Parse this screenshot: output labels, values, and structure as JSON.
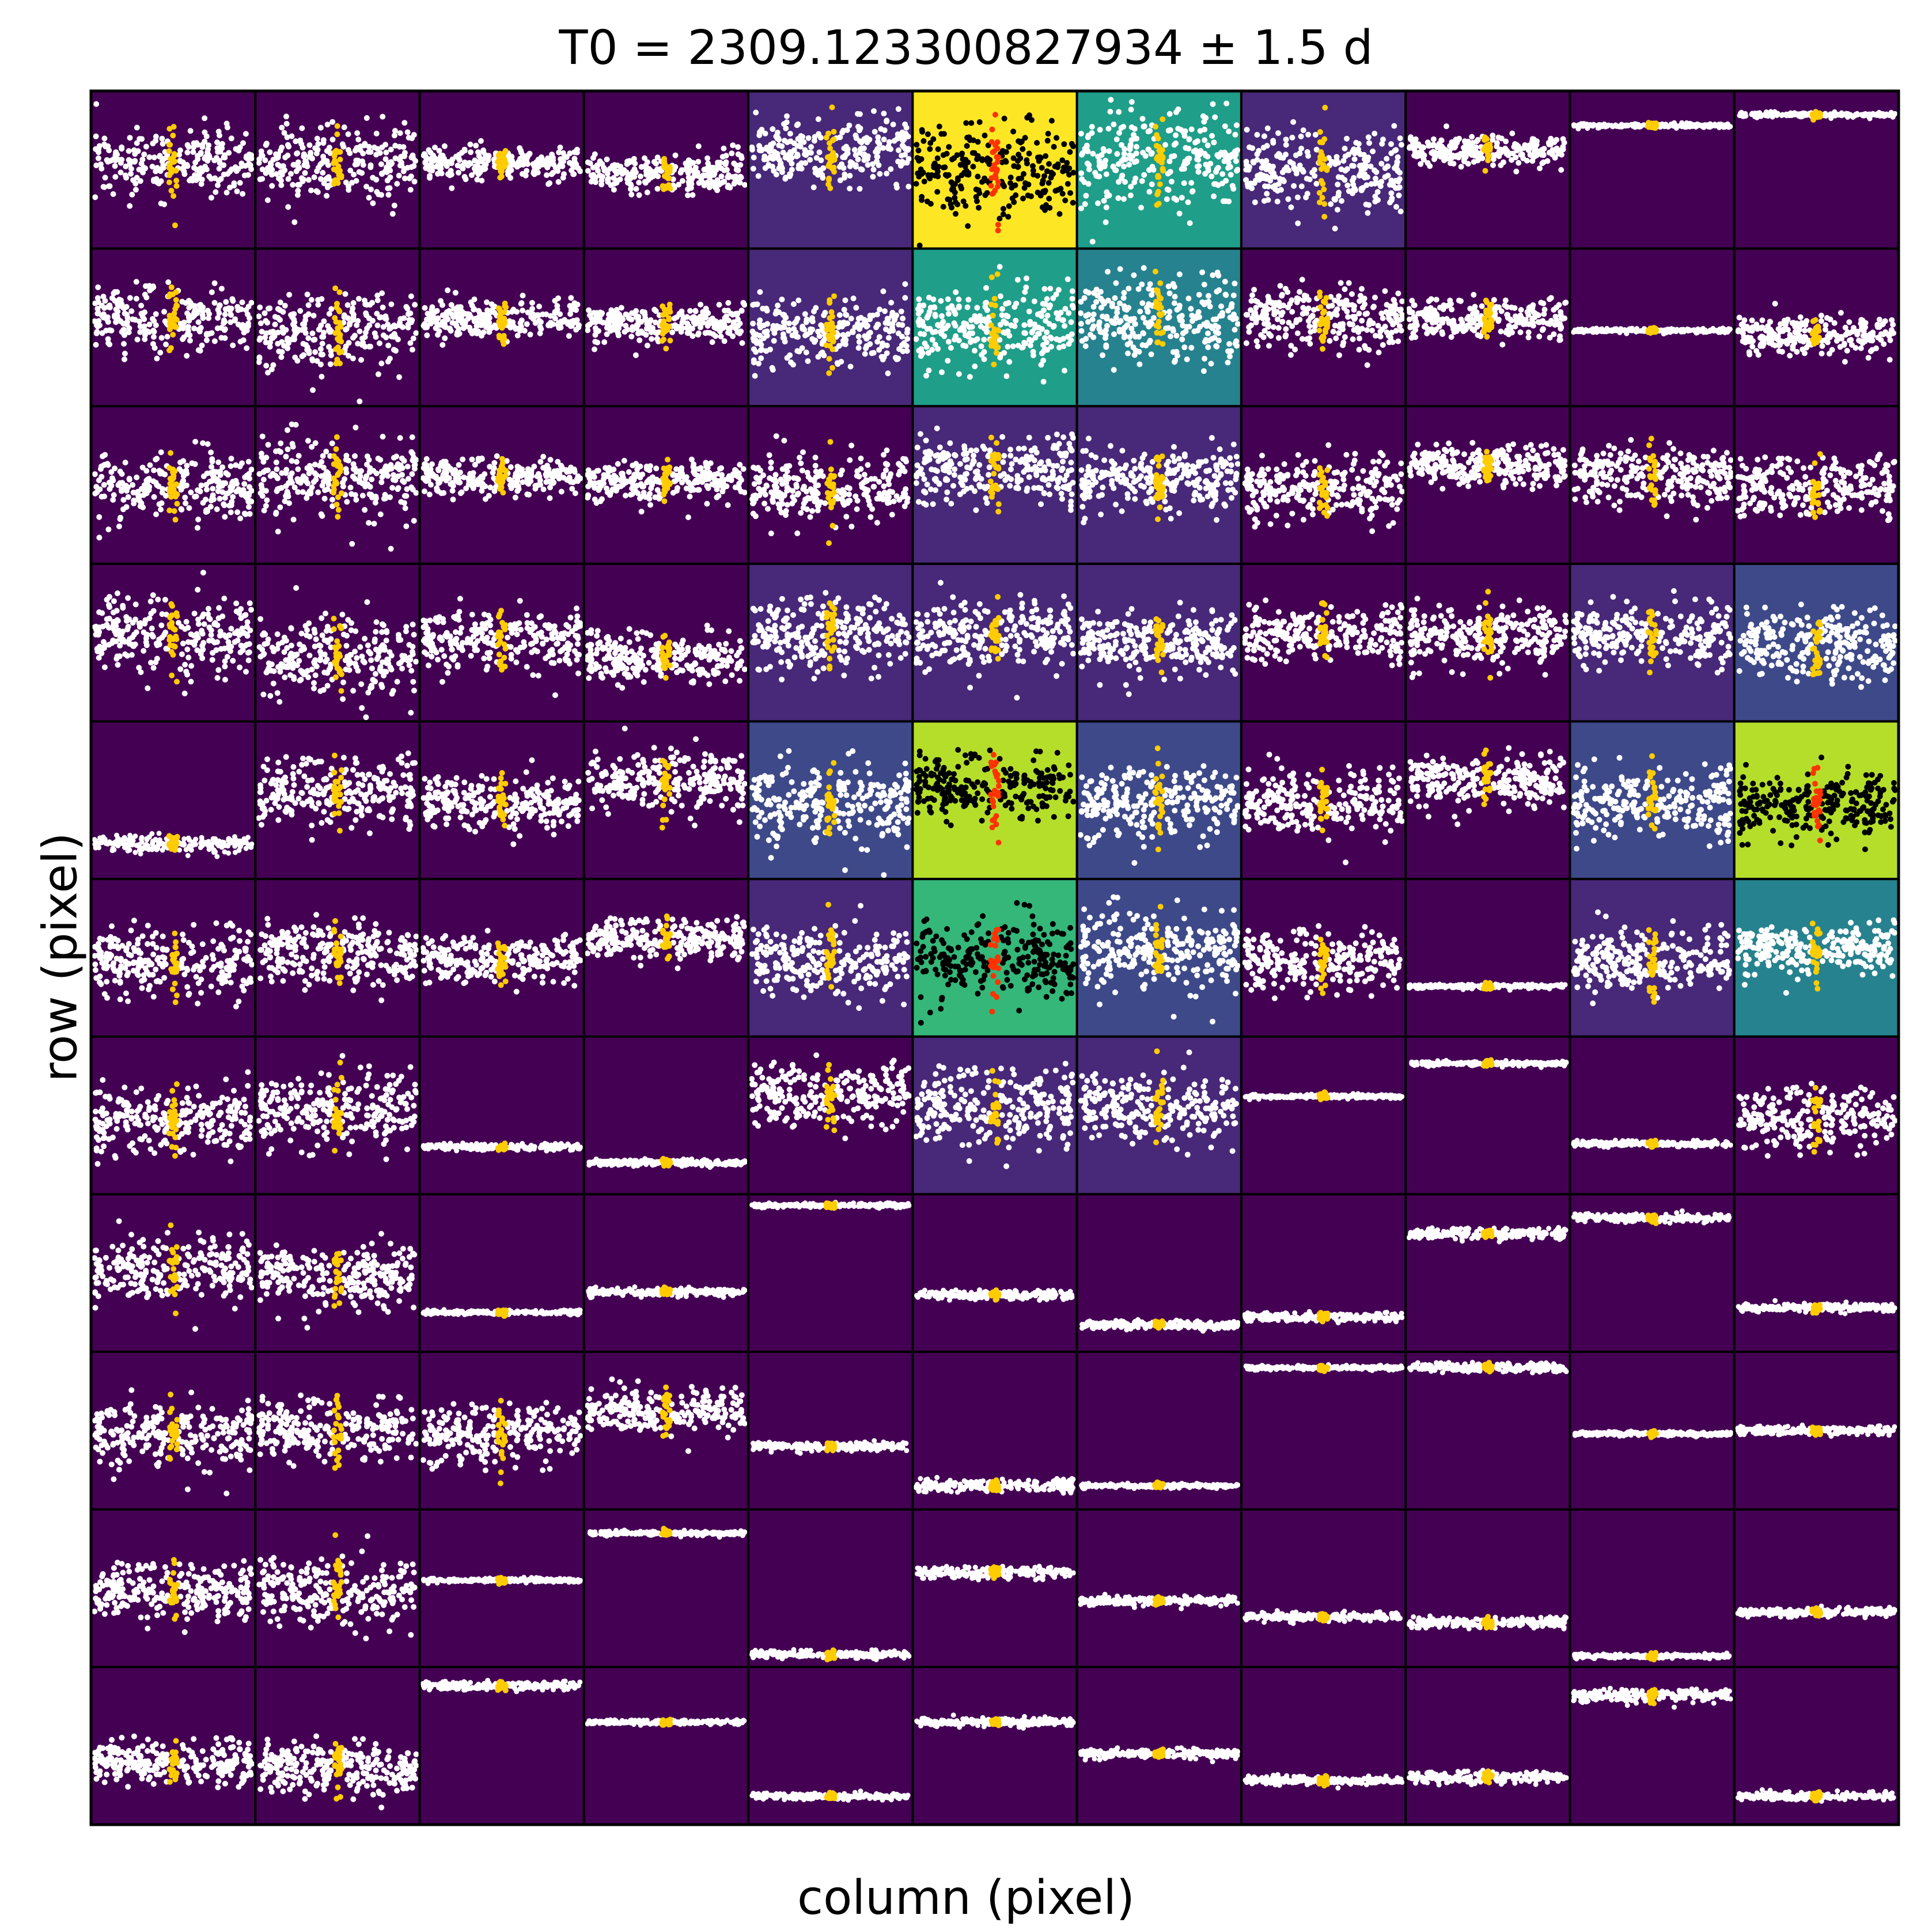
{
  "chart_data": {
    "type": "scatter",
    "title": "T0 = 2309.123300827934 ± 1.5 d",
    "xlabel": "column (pixel)",
    "ylabel": "row (pixel)",
    "grid_rows": 11,
    "grid_cols": 11,
    "colormap": "viridis",
    "colors": {
      "viridis": [
        "#440154",
        "#482878",
        "#3e4989",
        "#31688e",
        "#26828e",
        "#1f9e89",
        "#35b779",
        "#6ece58",
        "#b5de2b",
        "#fde725"
      ],
      "light_points": "#ffffff",
      "dark_points": "#000000",
      "in_transit_light": "#ffcc00",
      "in_transit_dark": "#ff3300",
      "frame": "#000000"
    },
    "pixel_intensity": [
      [
        0.0,
        0.0,
        0.0,
        0.02,
        0.15,
        1.0,
        0.6,
        0.15,
        0.0,
        0.0,
        0.0
      ],
      [
        0.0,
        0.0,
        0.0,
        0.02,
        0.1,
        0.5,
        0.4,
        0.05,
        0.02,
        0.0,
        0.02
      ],
      [
        0.0,
        0.0,
        0.0,
        0.02,
        0.05,
        0.1,
        0.1,
        0.05,
        0.02,
        0.02,
        0.05
      ],
      [
        0.0,
        0.0,
        0.0,
        0.0,
        0.1,
        0.15,
        0.1,
        0.05,
        0.05,
        0.1,
        0.2
      ],
      [
        0.0,
        0.0,
        0.0,
        0.05,
        0.25,
        0.88,
        0.25,
        0.05,
        0.05,
        0.2,
        0.88
      ],
      [
        0.0,
        0.0,
        0.0,
        0.02,
        0.15,
        0.7,
        0.2,
        0.05,
        0.0,
        0.1,
        0.45
      ],
      [
        0.0,
        0.0,
        0.0,
        0.0,
        0.05,
        0.1,
        0.1,
        0.02,
        0.0,
        0.0,
        0.02
      ],
      [
        0.0,
        0.0,
        0.0,
        0.0,
        0.0,
        0.0,
        0.0,
        0.0,
        0.0,
        0.0,
        0.0
      ],
      [
        0.0,
        0.0,
        0.0,
        0.0,
        0.0,
        0.0,
        0.0,
        0.0,
        0.0,
        0.0,
        0.0
      ],
      [
        0.0,
        0.0,
        0.0,
        0.0,
        0.0,
        0.0,
        0.0,
        0.0,
        0.0,
        0.0,
        0.0
      ],
      [
        0.0,
        0.0,
        0.0,
        0.0,
        0.0,
        0.0,
        0.0,
        0.0,
        0.0,
        0.0,
        0.0
      ]
    ],
    "light_curve_level": [
      [
        0.45,
        0.45,
        0.45,
        0.52,
        0.38,
        0.5,
        0.45,
        0.5,
        0.38,
        0.22,
        0.15
      ],
      [
        0.45,
        0.52,
        0.45,
        0.48,
        0.52,
        0.48,
        0.45,
        0.45,
        0.45,
        0.52,
        0.55
      ],
      [
        0.52,
        0.45,
        0.45,
        0.48,
        0.52,
        0.42,
        0.45,
        0.52,
        0.38,
        0.45,
        0.52
      ],
      [
        0.45,
        0.6,
        0.48,
        0.6,
        0.45,
        0.45,
        0.5,
        0.45,
        0.45,
        0.45,
        0.52
      ],
      [
        0.78,
        0.45,
        0.52,
        0.38,
        0.52,
        0.42,
        0.52,
        0.52,
        0.38,
        0.52,
        0.52
      ],
      [
        0.52,
        0.48,
        0.52,
        0.38,
        0.52,
        0.52,
        0.45,
        0.52,
        0.68,
        0.52,
        0.45
      ],
      [
        0.52,
        0.45,
        0.7,
        0.8,
        0.38,
        0.45,
        0.45,
        0.38,
        0.17,
        0.68,
        0.52
      ],
      [
        0.48,
        0.52,
        0.75,
        0.62,
        0.07,
        0.64,
        0.83,
        0.78,
        0.25,
        0.15,
        0.72
      ],
      [
        0.52,
        0.5,
        0.52,
        0.38,
        0.6,
        0.85,
        0.85,
        0.1,
        0.1,
        0.52,
        0.5
      ],
      [
        0.52,
        0.52,
        0.45,
        0.15,
        0.92,
        0.4,
        0.58,
        0.68,
        0.72,
        0.93,
        0.65
      ],
      [
        0.6,
        0.65,
        0.12,
        0.35,
        0.82,
        0.35,
        0.55,
        0.72,
        0.7,
        0.18,
        0.82
      ]
    ],
    "noise_level": [
      [
        0.32,
        0.36,
        0.16,
        0.18,
        0.32,
        0.45,
        0.45,
        0.36,
        0.14,
        0.02,
        0.02
      ],
      [
        0.32,
        0.36,
        0.18,
        0.18,
        0.32,
        0.4,
        0.4,
        0.3,
        0.18,
        0.02,
        0.18
      ],
      [
        0.32,
        0.36,
        0.18,
        0.18,
        0.32,
        0.32,
        0.32,
        0.3,
        0.18,
        0.28,
        0.28
      ],
      [
        0.36,
        0.4,
        0.28,
        0.25,
        0.36,
        0.32,
        0.3,
        0.25,
        0.3,
        0.3,
        0.32
      ],
      [
        0.08,
        0.32,
        0.25,
        0.3,
        0.36,
        0.32,
        0.36,
        0.3,
        0.25,
        0.32,
        0.32
      ],
      [
        0.32,
        0.3,
        0.22,
        0.18,
        0.32,
        0.4,
        0.36,
        0.3,
        0.02,
        0.3,
        0.25
      ],
      [
        0.32,
        0.36,
        0.03,
        0.03,
        0.3,
        0.36,
        0.32,
        0.02,
        0.02,
        0.03,
        0.3
      ],
      [
        0.3,
        0.3,
        0.02,
        0.04,
        0.02,
        0.04,
        0.04,
        0.04,
        0.05,
        0.04,
        0.04
      ],
      [
        0.3,
        0.3,
        0.3,
        0.2,
        0.04,
        0.06,
        0.02,
        0.02,
        0.04,
        0.02,
        0.04
      ],
      [
        0.25,
        0.32,
        0.02,
        0.02,
        0.04,
        0.06,
        0.04,
        0.04,
        0.05,
        0.02,
        0.04
      ],
      [
        0.2,
        0.25,
        0.04,
        0.02,
        0.03,
        0.04,
        0.04,
        0.04,
        0.06,
        0.06,
        0.04
      ]
    ],
    "in_transit_x_center": [
      [
        0.5,
        0.5,
        0.5,
        0.5,
        0.5,
        0.5,
        0.5,
        0.5,
        0.5,
        0.5,
        0.5
      ],
      [
        0.5,
        0.5,
        0.5,
        0.5,
        0.5,
        0.5,
        0.5,
        0.5,
        0.5,
        0.5,
        0.5
      ],
      [
        0.5,
        0.5,
        0.5,
        0.5,
        0.5,
        0.5,
        0.5,
        0.5,
        0.5,
        0.5,
        0.5
      ],
      [
        0.5,
        0.5,
        0.5,
        0.5,
        0.5,
        0.5,
        0.5,
        0.5,
        0.5,
        0.5,
        0.5
      ],
      [
        0.5,
        0.5,
        0.5,
        0.5,
        0.5,
        0.5,
        0.5,
        0.5,
        0.5,
        0.5,
        0.5
      ],
      [
        0.5,
        0.5,
        0.5,
        0.5,
        0.5,
        0.5,
        0.5,
        0.5,
        0.5,
        0.5,
        0.5
      ],
      [
        0.5,
        0.5,
        0.5,
        0.5,
        0.5,
        0.5,
        0.5,
        0.5,
        0.5,
        0.5,
        0.5
      ],
      [
        0.5,
        0.5,
        0.5,
        0.5,
        0.5,
        0.5,
        0.5,
        0.5,
        0.5,
        0.5,
        0.5
      ],
      [
        0.5,
        0.5,
        0.5,
        0.5,
        0.5,
        0.5,
        0.5,
        0.5,
        0.5,
        0.5,
        0.5
      ],
      [
        0.5,
        0.5,
        0.5,
        0.5,
        0.5,
        0.5,
        0.5,
        0.5,
        0.5,
        0.5,
        0.5
      ],
      [
        0.5,
        0.5,
        0.5,
        0.5,
        0.5,
        0.5,
        0.5,
        0.5,
        0.5,
        0.5,
        0.5
      ]
    ],
    "axes_ticks": "none",
    "grid": false,
    "legend": "none"
  }
}
